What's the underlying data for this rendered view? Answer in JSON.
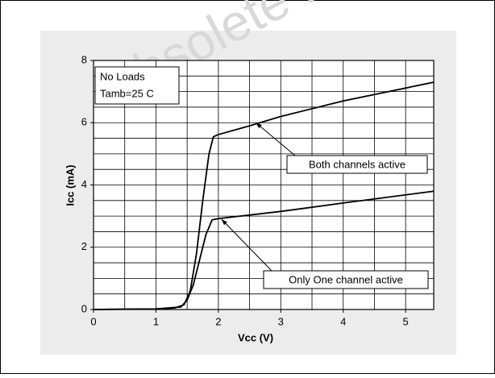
{
  "chart_data": {
    "type": "line",
    "watermark": "Obsolete P",
    "xlabel": "Vcc (V)",
    "ylabel": "Icc (mA)",
    "annotations": [
      "No Loads",
      "Tamb=25 C"
    ],
    "xlim": [
      0,
      5.45
    ],
    "ylim": [
      0,
      8
    ],
    "xticks": [
      0,
      1,
      2,
      3,
      4,
      5
    ],
    "yticks": [
      0,
      2,
      4,
      6,
      8
    ],
    "xgrid": [
      0.5,
      1,
      1.5,
      2,
      2.5,
      3,
      3.5,
      4,
      4.5,
      5
    ],
    "ygrid": [
      0.5,
      1,
      1.5,
      2,
      2.5,
      3,
      3.5,
      4,
      4.5,
      5,
      5.5,
      6,
      6.5,
      7,
      7.5
    ],
    "color": "#000000",
    "series": [
      {
        "name": "Both channels active",
        "color": "#000000",
        "x": [
          0,
          1,
          1.3,
          1.45,
          1.55,
          1.65,
          1.75,
          1.85,
          1.92,
          2,
          2.5,
          3,
          4,
          5.45
        ],
        "values": [
          0,
          0.02,
          0.05,
          0.15,
          0.6,
          1.8,
          3.5,
          5.0,
          5.55,
          5.62,
          5.9,
          6.2,
          6.7,
          7.3
        ],
        "pointer": [
          2.6,
          6.0
        ]
      },
      {
        "name": "Only One channel active",
        "color": "#000000",
        "x": [
          0,
          1,
          1.4,
          1.5,
          1.6,
          1.7,
          1.8,
          1.9,
          2,
          3,
          4,
          5.45
        ],
        "values": [
          0,
          0.02,
          0.08,
          0.3,
          0.8,
          1.6,
          2.4,
          2.88,
          2.92,
          3.15,
          3.42,
          3.8
        ],
        "pointer": [
          2.05,
          2.9
        ]
      }
    ]
  }
}
